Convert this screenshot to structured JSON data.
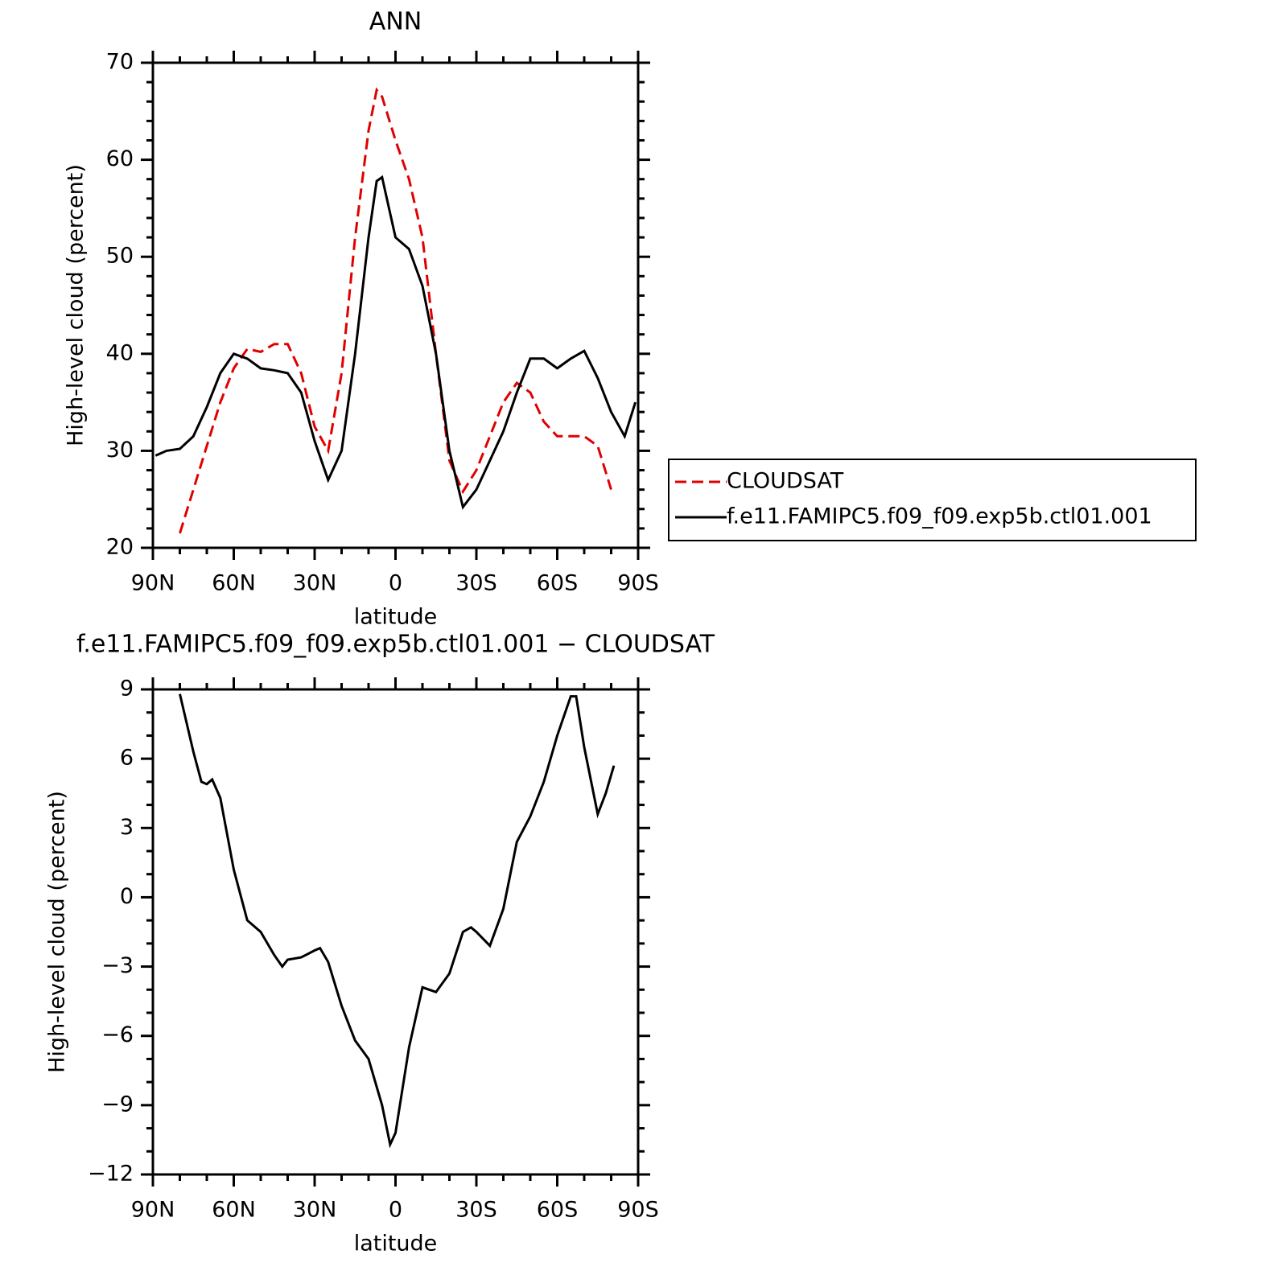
{
  "chart_data": [
    {
      "type": "line",
      "title": "ANN",
      "xlabel": "latitude",
      "ylabel": "High-level cloud (percent)",
      "x": [
        89,
        85,
        80,
        75,
        70,
        65,
        60,
        55,
        50,
        45,
        40,
        35,
        30,
        25,
        20,
        15,
        10,
        7,
        5,
        0,
        -5,
        -10,
        -15,
        -20,
        -25,
        -30,
        -35,
        -40,
        -45,
        -50,
        -55,
        -60,
        -65,
        -70,
        -75,
        -80,
        -85,
        -89
      ],
      "series": [
        {
          "name": "CLOUDSAT",
          "color": "#e00000",
          "dash": true,
          "values": [
            null,
            null,
            21.5,
            26,
            30.5,
            35,
            38.5,
            40.5,
            40.2,
            41,
            41,
            38,
            32.5,
            30,
            38,
            52,
            63,
            67.2,
            66.5,
            62,
            58,
            52,
            40,
            29,
            25.8,
            28,
            31.5,
            35,
            37,
            36,
            33,
            31.5,
            31.5,
            31.5,
            30.5,
            26,
            null,
            null
          ]
        },
        {
          "name": "f.e11.FAMIPC5.f09_f09.exp5b.ctl01.001",
          "color": "#000000",
          "dash": false,
          "values": [
            29.5,
            30,
            30.2,
            31.5,
            34.5,
            38,
            40,
            39.5,
            38.5,
            38.3,
            38,
            36,
            31,
            27,
            30,
            40,
            52,
            57.8,
            58.2,
            52,
            50.8,
            47,
            40,
            30,
            24.2,
            26,
            29,
            32,
            36,
            39.5,
            39.5,
            38.5,
            39.5,
            40.3,
            37.5,
            34,
            31.5,
            35
          ]
        }
      ],
      "xlim": [
        90,
        -90
      ],
      "xticks": [
        {
          "value": 90,
          "label": "90N"
        },
        {
          "value": 60,
          "label": "60N"
        },
        {
          "value": 30,
          "label": "30N"
        },
        0,
        {
          "value": -30,
          "label": "30S"
        },
        {
          "value": -60,
          "label": "60S"
        },
        {
          "value": -90,
          "label": "90S"
        }
      ],
      "ylim": [
        20,
        70
      ],
      "yticks": [
        20,
        30,
        40,
        50,
        60,
        70
      ],
      "legend": "right"
    },
    {
      "type": "line",
      "title": "f.e11.FAMIPC5.f09_f09.exp5b.ctl01.001 − CLOUDSAT",
      "xlabel": "latitude",
      "ylabel": "High-level cloud (percent)",
      "x": [
        80,
        75,
        72,
        70,
        68,
        65,
        60,
        55,
        50,
        45,
        42,
        40,
        35,
        30,
        28,
        25,
        20,
        15,
        10,
        5,
        2,
        0,
        -5,
        -10,
        -15,
        -20,
        -25,
        -28,
        -30,
        -35,
        -40,
        -45,
        -50,
        -55,
        -60,
        -65,
        -67,
        -70,
        -75,
        -78,
        -81
      ],
      "series": [
        {
          "color": "#000000",
          "dash": false,
          "values": [
            8.8,
            6.3,
            5,
            4.9,
            5.1,
            4.3,
            1.2,
            -1,
            -1.5,
            -2.5,
            -3,
            -2.7,
            -2.6,
            -2.3,
            -2.2,
            -2.8,
            -4.7,
            -6.2,
            -7,
            -9,
            -10.7,
            -10.2,
            -6.5,
            -3.9,
            -4.1,
            -3.3,
            -1.5,
            -1.3,
            -1.5,
            -2.1,
            -0.5,
            2.4,
            3.5,
            5,
            7,
            8.7,
            8.7,
            6.5,
            3.6,
            4.5,
            5.7
          ]
        }
      ],
      "xlim": [
        90,
        -90
      ],
      "xticks": [
        {
          "value": 90,
          "label": "90N"
        },
        {
          "value": 60,
          "label": "60N"
        },
        {
          "value": 30,
          "label": "30N"
        },
        0,
        {
          "value": -30,
          "label": "30S"
        },
        {
          "value": -60,
          "label": "60S"
        },
        {
          "value": -90,
          "label": "90S"
        }
      ],
      "ylim": [
        -12,
        9
      ],
      "yticks": [
        {
          "value": -12,
          "label": "−12"
        },
        {
          "value": -9,
          "label": "−9"
        },
        {
          "value": -6,
          "label": "−6"
        },
        {
          "value": -3,
          "label": "−3"
        },
        0,
        3,
        6,
        9
      ]
    }
  ]
}
